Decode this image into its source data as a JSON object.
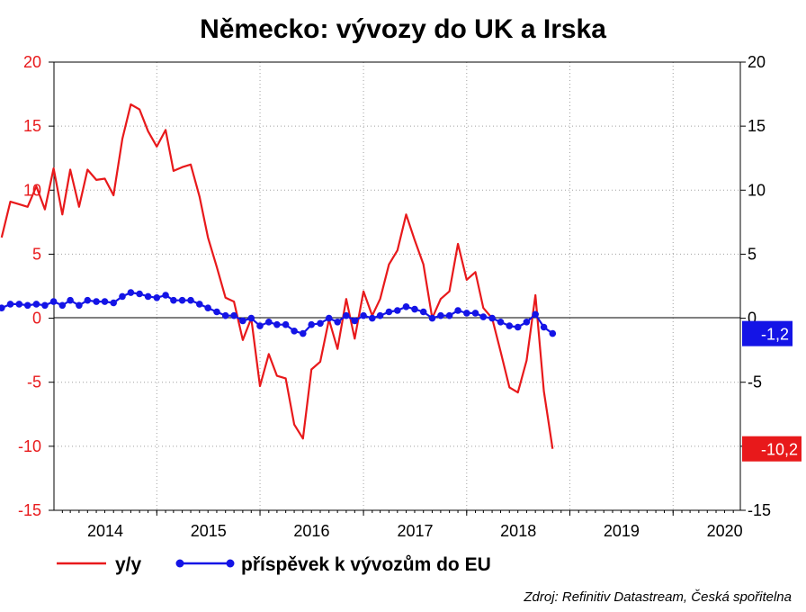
{
  "chart_data": {
    "type": "line",
    "title": "Německo: vývozy do UK a Irska",
    "source": "Zdroj: Refinitiv Datastream, Česká spořitelna",
    "ylim_left": [
      -15,
      20
    ],
    "ylim_right": [
      -15,
      20
    ],
    "y_ticks": [
      "20",
      "15",
      "10",
      "5",
      "0",
      "-5",
      "-10",
      "-15"
    ],
    "x_tick_labels": [
      "2014",
      "2015",
      "2016",
      "2017",
      "2018",
      "2019",
      "2020"
    ],
    "grid": true,
    "legend_position": "bottom",
    "series": [
      {
        "name": "y/y",
        "color": "#e8191b",
        "marker": "none",
        "end_label": "-10,2",
        "values": [
          [
            "2013-07-01",
            6.3
          ],
          [
            "2013-08-01",
            9.1
          ],
          [
            "2013-09-01",
            8.9
          ],
          [
            "2013-10-01",
            8.7
          ],
          [
            "2013-11-01",
            10.3
          ],
          [
            "2013-12-01",
            8.5
          ],
          [
            "2014-01-01",
            11.7
          ],
          [
            "2014-02-01",
            8.1
          ],
          [
            "2014-03-01",
            11.6
          ],
          [
            "2014-04-01",
            8.7
          ],
          [
            "2014-05-01",
            11.6
          ],
          [
            "2014-06-01",
            10.8
          ],
          [
            "2014-07-01",
            10.9
          ],
          [
            "2014-08-01",
            9.6
          ],
          [
            "2014-09-01",
            14.0
          ],
          [
            "2014-10-01",
            16.7
          ],
          [
            "2014-11-01",
            16.3
          ],
          [
            "2014-12-01",
            14.6
          ],
          [
            "2015-01-01",
            13.4
          ],
          [
            "2015-02-01",
            14.7
          ],
          [
            "2015-03-01",
            11.5
          ],
          [
            "2015-04-01",
            11.8
          ],
          [
            "2015-05-01",
            12.0
          ],
          [
            "2015-06-01",
            9.5
          ],
          [
            "2015-07-01",
            6.3
          ],
          [
            "2015-08-01",
            4.0
          ],
          [
            "2015-09-01",
            1.6
          ],
          [
            "2015-10-01",
            1.3
          ],
          [
            "2015-11-01",
            -1.7
          ],
          [
            "2015-12-01",
            0.0
          ],
          [
            "2016-01-01",
            -5.3
          ],
          [
            "2016-02-01",
            -2.8
          ],
          [
            "2016-03-01",
            -4.5
          ],
          [
            "2016-04-01",
            -4.7
          ],
          [
            "2016-05-01",
            -8.3
          ],
          [
            "2016-06-01",
            -9.4
          ],
          [
            "2016-07-01",
            -4.0
          ],
          [
            "2016-08-01",
            -3.4
          ],
          [
            "2016-09-01",
            -0.1
          ],
          [
            "2016-10-01",
            -2.4
          ],
          [
            "2016-11-01",
            1.5
          ],
          [
            "2016-12-01",
            -1.6
          ],
          [
            "2017-01-01",
            2.1
          ],
          [
            "2017-02-01",
            0.2
          ],
          [
            "2017-03-01",
            1.5
          ],
          [
            "2017-04-01",
            4.2
          ],
          [
            "2017-05-01",
            5.3
          ],
          [
            "2017-06-01",
            8.1
          ],
          [
            "2017-07-01",
            6.1
          ],
          [
            "2017-08-01",
            4.2
          ],
          [
            "2017-09-01",
            0.0
          ],
          [
            "2017-10-01",
            1.5
          ],
          [
            "2017-11-01",
            2.1
          ],
          [
            "2017-12-01",
            5.8
          ],
          [
            "2018-01-01",
            3.0
          ],
          [
            "2018-02-01",
            3.6
          ],
          [
            "2018-03-01",
            0.8
          ],
          [
            "2018-04-01",
            0.0
          ],
          [
            "2018-05-01",
            -2.6
          ],
          [
            "2018-06-01",
            -5.4
          ],
          [
            "2018-07-01",
            -5.8
          ],
          [
            "2018-08-01",
            -3.3
          ],
          [
            "2018-09-01",
            1.8
          ],
          [
            "2018-10-01",
            -5.7
          ],
          [
            "2018-11-01",
            -10.2
          ]
        ]
      },
      {
        "name": "příspěvek k vývozům do EU",
        "color": "#1414e6",
        "marker": "circle",
        "end_label": "-1,2",
        "values": [
          [
            "2013-07-01",
            0.8
          ],
          [
            "2013-08-01",
            1.1
          ],
          [
            "2013-09-01",
            1.1
          ],
          [
            "2013-10-01",
            1.0
          ],
          [
            "2013-11-01",
            1.1
          ],
          [
            "2013-12-01",
            1.0
          ],
          [
            "2014-01-01",
            1.3
          ],
          [
            "2014-02-01",
            1.0
          ],
          [
            "2014-03-01",
            1.4
          ],
          [
            "2014-04-01",
            1.0
          ],
          [
            "2014-05-01",
            1.4
          ],
          [
            "2014-06-01",
            1.3
          ],
          [
            "2014-07-01",
            1.3
          ],
          [
            "2014-08-01",
            1.2
          ],
          [
            "2014-09-01",
            1.7
          ],
          [
            "2014-10-01",
            2.0
          ],
          [
            "2014-11-01",
            1.9
          ],
          [
            "2014-12-01",
            1.7
          ],
          [
            "2015-01-01",
            1.6
          ],
          [
            "2015-02-01",
            1.8
          ],
          [
            "2015-03-01",
            1.4
          ],
          [
            "2015-04-01",
            1.4
          ],
          [
            "2015-05-01",
            1.4
          ],
          [
            "2015-06-01",
            1.1
          ],
          [
            "2015-07-01",
            0.8
          ],
          [
            "2015-08-01",
            0.5
          ],
          [
            "2015-09-01",
            0.2
          ],
          [
            "2015-10-01",
            0.2
          ],
          [
            "2015-11-01",
            -0.2
          ],
          [
            "2015-12-01",
            0.0
          ],
          [
            "2016-01-01",
            -0.6
          ],
          [
            "2016-02-01",
            -0.3
          ],
          [
            "2016-03-01",
            -0.5
          ],
          [
            "2016-04-01",
            -0.5
          ],
          [
            "2016-05-01",
            -1.0
          ],
          [
            "2016-06-01",
            -1.2
          ],
          [
            "2016-07-01",
            -0.5
          ],
          [
            "2016-08-01",
            -0.4
          ],
          [
            "2016-09-01",
            0.0
          ],
          [
            "2016-10-01",
            -0.3
          ],
          [
            "2016-11-01",
            0.2
          ],
          [
            "2016-12-01",
            -0.2
          ],
          [
            "2017-01-01",
            0.2
          ],
          [
            "2017-02-01",
            0.0
          ],
          [
            "2017-03-01",
            0.2
          ],
          [
            "2017-04-01",
            0.5
          ],
          [
            "2017-05-01",
            0.6
          ],
          [
            "2017-06-01",
            0.9
          ],
          [
            "2017-07-01",
            0.7
          ],
          [
            "2017-08-01",
            0.5
          ],
          [
            "2017-09-01",
            0.0
          ],
          [
            "2017-10-01",
            0.2
          ],
          [
            "2017-11-01",
            0.2
          ],
          [
            "2017-12-01",
            0.6
          ],
          [
            "2018-01-01",
            0.4
          ],
          [
            "2018-02-01",
            0.4
          ],
          [
            "2018-03-01",
            0.1
          ],
          [
            "2018-04-01",
            0.0
          ],
          [
            "2018-05-01",
            -0.3
          ],
          [
            "2018-06-01",
            -0.6
          ],
          [
            "2018-07-01",
            -0.7
          ],
          [
            "2018-08-01",
            -0.3
          ],
          [
            "2018-09-01",
            0.3
          ],
          [
            "2018-10-01",
            -0.7
          ],
          [
            "2018-11-01",
            -1.2
          ]
        ]
      }
    ]
  }
}
